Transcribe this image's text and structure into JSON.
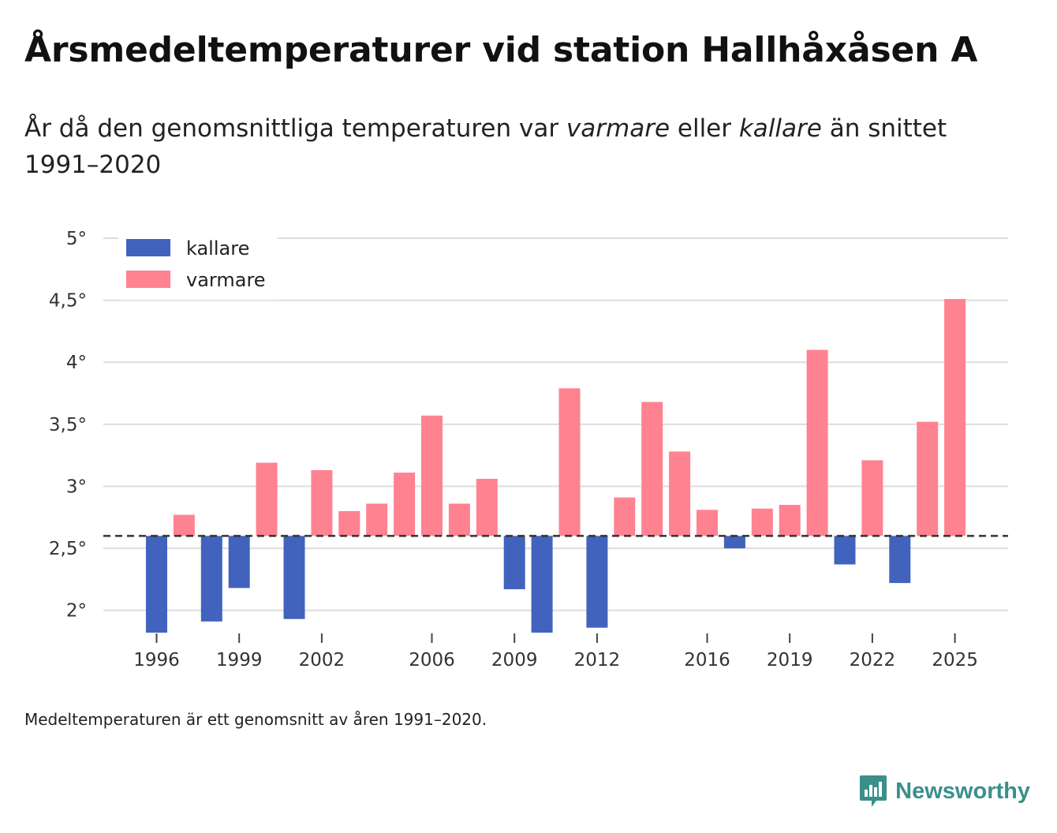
{
  "header": {
    "title": "Årsmedeltemperaturer vid station Hallhåxåsen A",
    "subtitle_pre": "År då den genomsnittliga temperaturen var ",
    "subtitle_warm": "varmare",
    "subtitle_mid": " eller ",
    "subtitle_cold": "kallare",
    "subtitle_post": " än snittet 1991–2020"
  },
  "footer": {
    "note": "Medeltemperaturen är ett genomsnitt av åren 1991–2020.",
    "brand": "Newsworthy"
  },
  "colors": {
    "warm": "#ff8291",
    "cold": "#4163be",
    "grid": "#dddddd",
    "baseline": "#333333",
    "brand": "#3a8f8b"
  },
  "chart_data": {
    "type": "bar",
    "title": "Årsmedeltemperaturer vid station Hallhåxåsen A",
    "xlabel": "",
    "ylabel": "",
    "baseline": 2.6,
    "ylim": [
      1.82,
      5.0
    ],
    "yticks": [
      2,
      2.5,
      3,
      3.5,
      4,
      4.5,
      5
    ],
    "ytick_labels": [
      "2°",
      "2,5°",
      "3°",
      "3,5°",
      "4°",
      "4,5°",
      "5°"
    ],
    "xticks": [
      1996,
      1999,
      2002,
      2006,
      2009,
      2012,
      2016,
      2019,
      2022,
      2025
    ],
    "grid": true,
    "legend": [
      {
        "key": "cold",
        "label": "kallare"
      },
      {
        "key": "warm",
        "label": "varmare"
      }
    ],
    "legend_position": "top-left",
    "categories": [
      1996,
      1997,
      1998,
      1999,
      2000,
      2001,
      2002,
      2003,
      2004,
      2005,
      2006,
      2007,
      2008,
      2009,
      2010,
      2011,
      2012,
      2013,
      2014,
      2015,
      2016,
      2017,
      2018,
      2019,
      2020,
      2021,
      2022,
      2023,
      2024,
      2025
    ],
    "values": [
      1.82,
      2.77,
      1.91,
      2.18,
      3.19,
      1.93,
      3.13,
      2.8,
      2.86,
      3.11,
      3.57,
      2.86,
      3.06,
      2.17,
      1.82,
      3.79,
      1.86,
      2.91,
      3.68,
      3.28,
      2.81,
      2.5,
      2.82,
      2.85,
      4.1,
      2.37,
      3.21,
      2.22,
      3.52,
      4.51
    ]
  }
}
